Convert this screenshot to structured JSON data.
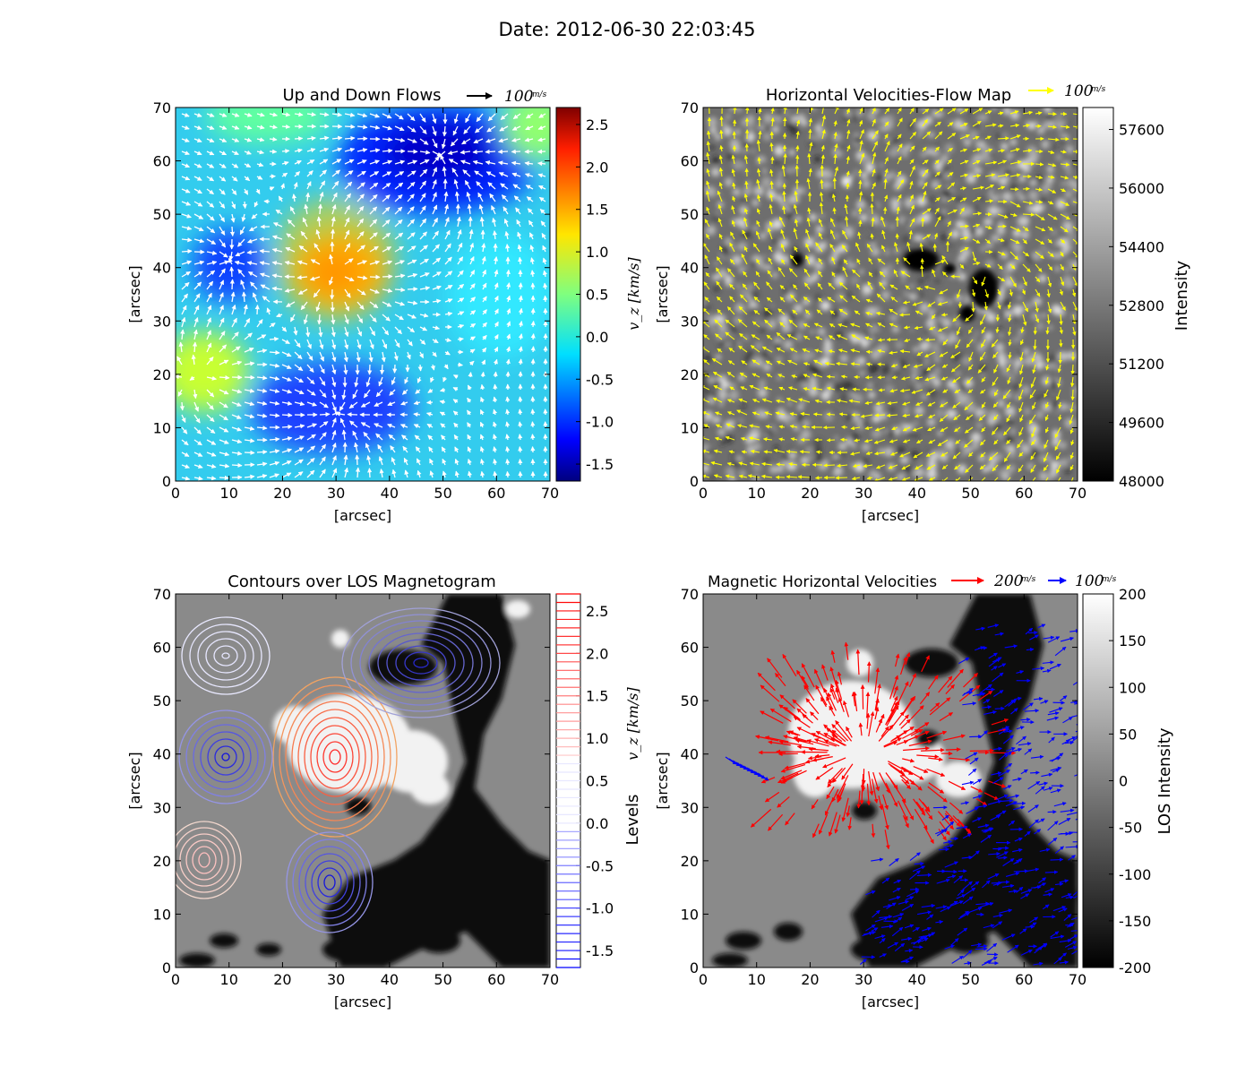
{
  "figure": {
    "suptitle": "Date: 2012-06-30 22:03:45"
  },
  "chart_data": [
    {
      "type": "heatmap",
      "title": "Up and Down Flows",
      "xlabel": "[arcsec]",
      "ylabel": "[arcsec]",
      "xlim": [
        0,
        70
      ],
      "ylim": [
        0,
        70
      ],
      "xticks": [
        "0",
        "10",
        "20",
        "30",
        "40",
        "50",
        "60",
        "70"
      ],
      "yticks": [
        "0",
        "10",
        "20",
        "30",
        "40",
        "50",
        "60",
        "70"
      ],
      "key_label": "100",
      "key_unit": "m/s",
      "key_color": "#000000",
      "vector_color": "#ffffff",
      "colormap": "jet",
      "colorbar": {
        "label": "v_z [km/s]",
        "range": [
          -1.7,
          2.7
        ],
        "ticks": [
          "-1.5",
          "-1.0",
          "-0.5",
          "0.0",
          "0.5",
          "1.0",
          "1.5",
          "2.0",
          "2.5"
        ]
      },
      "features": [
        {
          "kind": "upflow",
          "x": 30,
          "y": 38,
          "vz": 2.5
        },
        {
          "kind": "downflow",
          "x": 49,
          "y": 57,
          "vz": -1.6
        },
        {
          "kind": "downflow",
          "x": 10,
          "y": 40,
          "vz": -1.2
        },
        {
          "kind": "downflow",
          "x": 28,
          "y": 12,
          "vz": -1.0
        },
        {
          "kind": "upflow",
          "x": 5,
          "y": 21,
          "vz": 1.0
        }
      ]
    },
    {
      "type": "heatmap",
      "title": "Horizontal Velocities-Flow Map",
      "xlabel": "[arcsec]",
      "ylabel": "[arcsec]",
      "xlim": [
        0,
        70
      ],
      "ylim": [
        0,
        70
      ],
      "xticks": [
        "0",
        "10",
        "20",
        "30",
        "40",
        "50",
        "60",
        "70"
      ],
      "yticks": [
        "0",
        "10",
        "20",
        "30",
        "40",
        "50",
        "60",
        "70"
      ],
      "key_label": "100",
      "key_unit": "m/s",
      "key_color": "#ffff00",
      "vector_color": "#ffff00",
      "colormap": "gray",
      "colorbar": {
        "label": "Intensity",
        "range": [
          48000,
          58200
        ],
        "ticks": [
          "48000",
          "49600",
          "51200",
          "52800",
          "54400",
          "56000",
          "57600"
        ]
      }
    },
    {
      "type": "heatmap",
      "title": "Contours over LOS Magnetogram",
      "xlabel": "[arcsec]",
      "ylabel": "[arcsec]",
      "xlim": [
        0,
        70
      ],
      "ylim": [
        0,
        70
      ],
      "xticks": [
        "0",
        "10",
        "20",
        "30",
        "40",
        "50",
        "60",
        "70"
      ],
      "yticks": [
        "0",
        "10",
        "20",
        "30",
        "40",
        "50",
        "60",
        "70"
      ],
      "colormap": "gray",
      "colorbar": {
        "label": "Levels",
        "label_math": "v_z [km/s]",
        "range": [
          -1.7,
          2.7
        ],
        "ticks": [
          "-1.5",
          "-1.0",
          "-0.5",
          "0.0",
          "0.5",
          "1.0",
          "1.5",
          "2.0",
          "2.5"
        ]
      }
    },
    {
      "type": "heatmap",
      "title": "Magnetic Horizontal Velocities",
      "xlabel": "[arcsec]",
      "ylabel": "[arcsec]",
      "xlim": [
        0,
        70
      ],
      "ylim": [
        0,
        70
      ],
      "xticks": [
        "0",
        "10",
        "20",
        "30",
        "40",
        "50",
        "60",
        "70"
      ],
      "yticks": [
        "0",
        "10",
        "20",
        "30",
        "40",
        "50",
        "60",
        "70"
      ],
      "key_red_label": "200",
      "key_blue_label": "100",
      "key_unit": "m/s",
      "colormap": "gray",
      "colorbar": {
        "label": "LOS Intensity",
        "range": [
          -200,
          200
        ],
        "ticks": [
          "-200",
          "-150",
          "-100",
          "-50",
          "0",
          "50",
          "100",
          "150",
          "200"
        ]
      }
    }
  ]
}
